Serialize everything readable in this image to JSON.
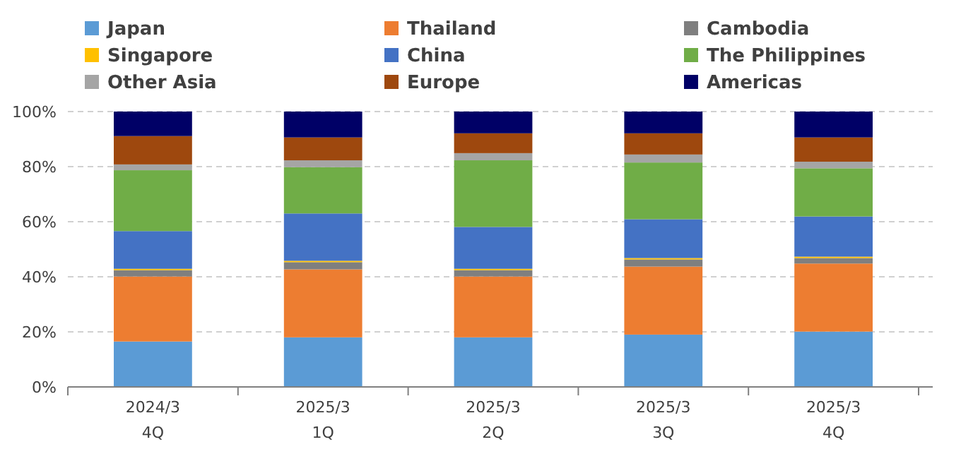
{
  "chart_data": {
    "type": "bar",
    "stacked": true,
    "categories": [
      "2024/3\n4Q",
      "2025/3\n1Q",
      "2025/3\n2Q",
      "2025/3\n3Q",
      "2025/3\n4Q"
    ],
    "ylim": [
      0,
      100
    ],
    "yticks": [
      {
        "value": 0,
        "label": "0%"
      },
      {
        "value": 20,
        "label": "20%"
      },
      {
        "value": 40,
        "label": "40%"
      },
      {
        "value": 60,
        "label": "60%"
      },
      {
        "value": 80,
        "label": "80%"
      },
      {
        "value": 100,
        "label": "100%"
      }
    ],
    "grid": "y",
    "legend": "top",
    "series": [
      {
        "name": "Japan",
        "color": "#5b9bd5",
        "values": [
          16.5,
          18.0,
          18.0,
          19.0,
          20.1
        ]
      },
      {
        "name": "Thailand",
        "color": "#ed7d31",
        "values": [
          23.6,
          24.7,
          22.1,
          24.7,
          24.7
        ]
      },
      {
        "name": "Cambodia",
        "color": "#7f7f7f",
        "values": [
          2.3,
          2.6,
          2.3,
          2.6,
          2.0
        ]
      },
      {
        "name": "Singapore",
        "color": "#ffc000",
        "values": [
          0.5,
          0.5,
          0.5,
          0.5,
          0.5
        ]
      },
      {
        "name": "China",
        "color": "#4472c4",
        "values": [
          13.7,
          17.2,
          15.2,
          14.1,
          14.6
        ]
      },
      {
        "name": "The Philippines",
        "color": "#70ad47",
        "values": [
          22.1,
          16.8,
          24.2,
          20.6,
          17.5
        ]
      },
      {
        "name": "Other Asia",
        "color": "#a5a5a5",
        "values": [
          2.1,
          2.5,
          2.6,
          2.9,
          2.4
        ]
      },
      {
        "name": "Europe",
        "color": "#9e480e",
        "values": [
          10.3,
          8.3,
          7.2,
          7.7,
          8.8
        ]
      },
      {
        "name": "Americas",
        "color": "#000066",
        "values": [
          8.9,
          9.4,
          7.9,
          7.9,
          9.4
        ]
      }
    ]
  }
}
